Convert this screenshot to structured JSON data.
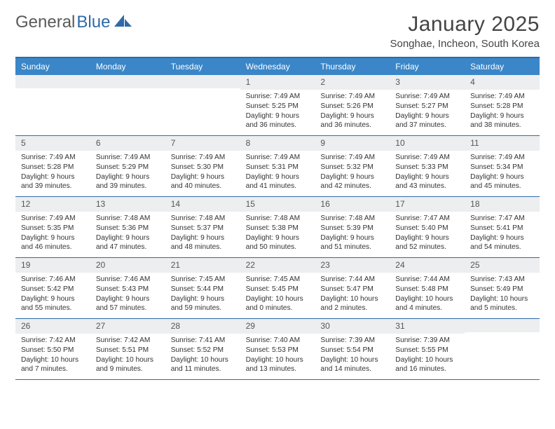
{
  "brand": {
    "part1": "General",
    "part2": "Blue"
  },
  "title": "January 2025",
  "location": "Songhae, Incheon, South Korea",
  "colors": {
    "header_bg": "#3a86c8",
    "rule": "#2f6aa8",
    "daynum_bg": "#eceef0",
    "text": "#333333"
  },
  "day_names": [
    "Sunday",
    "Monday",
    "Tuesday",
    "Wednesday",
    "Thursday",
    "Friday",
    "Saturday"
  ],
  "weeks": [
    [
      null,
      null,
      null,
      {
        "d": "1",
        "sr": "7:49 AM",
        "ss": "5:25 PM",
        "dl": "9 hours and 36 minutes."
      },
      {
        "d": "2",
        "sr": "7:49 AM",
        "ss": "5:26 PM",
        "dl": "9 hours and 36 minutes."
      },
      {
        "d": "3",
        "sr": "7:49 AM",
        "ss": "5:27 PM",
        "dl": "9 hours and 37 minutes."
      },
      {
        "d": "4",
        "sr": "7:49 AM",
        "ss": "5:28 PM",
        "dl": "9 hours and 38 minutes."
      }
    ],
    [
      {
        "d": "5",
        "sr": "7:49 AM",
        "ss": "5:28 PM",
        "dl": "9 hours and 39 minutes."
      },
      {
        "d": "6",
        "sr": "7:49 AM",
        "ss": "5:29 PM",
        "dl": "9 hours and 39 minutes."
      },
      {
        "d": "7",
        "sr": "7:49 AM",
        "ss": "5:30 PM",
        "dl": "9 hours and 40 minutes."
      },
      {
        "d": "8",
        "sr": "7:49 AM",
        "ss": "5:31 PM",
        "dl": "9 hours and 41 minutes."
      },
      {
        "d": "9",
        "sr": "7:49 AM",
        "ss": "5:32 PM",
        "dl": "9 hours and 42 minutes."
      },
      {
        "d": "10",
        "sr": "7:49 AM",
        "ss": "5:33 PM",
        "dl": "9 hours and 43 minutes."
      },
      {
        "d": "11",
        "sr": "7:49 AM",
        "ss": "5:34 PM",
        "dl": "9 hours and 45 minutes."
      }
    ],
    [
      {
        "d": "12",
        "sr": "7:49 AM",
        "ss": "5:35 PM",
        "dl": "9 hours and 46 minutes."
      },
      {
        "d": "13",
        "sr": "7:48 AM",
        "ss": "5:36 PM",
        "dl": "9 hours and 47 minutes."
      },
      {
        "d": "14",
        "sr": "7:48 AM",
        "ss": "5:37 PM",
        "dl": "9 hours and 48 minutes."
      },
      {
        "d": "15",
        "sr": "7:48 AM",
        "ss": "5:38 PM",
        "dl": "9 hours and 50 minutes."
      },
      {
        "d": "16",
        "sr": "7:48 AM",
        "ss": "5:39 PM",
        "dl": "9 hours and 51 minutes."
      },
      {
        "d": "17",
        "sr": "7:47 AM",
        "ss": "5:40 PM",
        "dl": "9 hours and 52 minutes."
      },
      {
        "d": "18",
        "sr": "7:47 AM",
        "ss": "5:41 PM",
        "dl": "9 hours and 54 minutes."
      }
    ],
    [
      {
        "d": "19",
        "sr": "7:46 AM",
        "ss": "5:42 PM",
        "dl": "9 hours and 55 minutes."
      },
      {
        "d": "20",
        "sr": "7:46 AM",
        "ss": "5:43 PM",
        "dl": "9 hours and 57 minutes."
      },
      {
        "d": "21",
        "sr": "7:45 AM",
        "ss": "5:44 PM",
        "dl": "9 hours and 59 minutes."
      },
      {
        "d": "22",
        "sr": "7:45 AM",
        "ss": "5:45 PM",
        "dl": "10 hours and 0 minutes."
      },
      {
        "d": "23",
        "sr": "7:44 AM",
        "ss": "5:47 PM",
        "dl": "10 hours and 2 minutes."
      },
      {
        "d": "24",
        "sr": "7:44 AM",
        "ss": "5:48 PM",
        "dl": "10 hours and 4 minutes."
      },
      {
        "d": "25",
        "sr": "7:43 AM",
        "ss": "5:49 PM",
        "dl": "10 hours and 5 minutes."
      }
    ],
    [
      {
        "d": "26",
        "sr": "7:42 AM",
        "ss": "5:50 PM",
        "dl": "10 hours and 7 minutes."
      },
      {
        "d": "27",
        "sr": "7:42 AM",
        "ss": "5:51 PM",
        "dl": "10 hours and 9 minutes."
      },
      {
        "d": "28",
        "sr": "7:41 AM",
        "ss": "5:52 PM",
        "dl": "10 hours and 11 minutes."
      },
      {
        "d": "29",
        "sr": "7:40 AM",
        "ss": "5:53 PM",
        "dl": "10 hours and 13 minutes."
      },
      {
        "d": "30",
        "sr": "7:39 AM",
        "ss": "5:54 PM",
        "dl": "10 hours and 14 minutes."
      },
      {
        "d": "31",
        "sr": "7:39 AM",
        "ss": "5:55 PM",
        "dl": "10 hours and 16 minutes."
      },
      null
    ]
  ],
  "labels": {
    "sunrise": "Sunrise: ",
    "sunset": "Sunset: ",
    "daylight": "Daylight: "
  }
}
